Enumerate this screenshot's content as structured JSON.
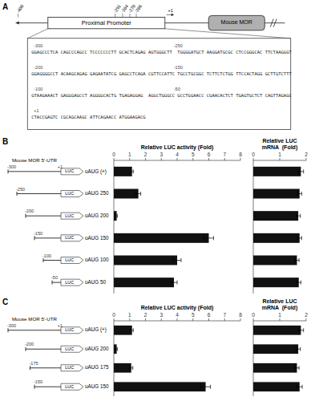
{
  "chart_data": [
    {
      "type": "diagram",
      "panel": "A",
      "annotations": [
        "Proximal Promoter",
        "Mouse MOR",
        "-400",
        "-291",
        "-264",
        "-270",
        "-286",
        "+1"
      ],
      "sequence_labels": [
        [
          "-300",
          "-250"
        ],
        [
          "-200",
          "-150"
        ],
        [
          "-100",
          "-50"
        ],
        [
          "+1"
        ]
      ],
      "sequence": [
        "GGAGCCCTCA CAGCCCAGCC TCCCCCCCTT GCACTCAGAG AGTGGGCTT  TGGGGATGCT AAGGATGCGC CTCCGGGCAC TTCTAAGGGT",
        "GGAGGGGCCT ACAAGCAGAG GAGAATATCG GAGCCTCAGA CGTTCCATTC TGCCTGCGGC TCTTCTCTGG TTCCACTAGG GCTTGTCTTT",
        "GTAAGAAACT GAGGGAGCCT AGGGGCACTG TGAGAGGAG  AGGCTGGGCC GCCTGGAACC CGAACACTCT TGAGTGCTCT CAGTTAGAGC",
        "CTACCGAGTC CGCAGCAAGC ATTCAGAACC ATGGAAGACG"
      ]
    },
    {
      "type": "bar",
      "orientation": "horizontal",
      "panel": "B",
      "title": "Relative LUC activity (Fold)",
      "subtitle": "Mouse MOR 5’-UTR",
      "categories": [
        "uAUG (+)",
        "uAUG 250",
        "uAUG 200",
        "uAUG 150",
        "uAUG 100",
        "uAUG 50"
      ],
      "starts": [
        -300,
        -250,
        -200,
        -150,
        -100,
        -50
      ],
      "annotations": [
        "+1",
        "LUC"
      ],
      "values": [
        1.15,
        1.55,
        0.18,
        6.0,
        4.0,
        3.8
      ],
      "errors": [
        0.08,
        0.15,
        0.04,
        0.3,
        0.25,
        0.2
      ],
      "color": "#111111",
      "xlim": [
        0,
        8
      ],
      "xticks": [
        0,
        1,
        2,
        3,
        4,
        5,
        6,
        7,
        8
      ]
    },
    {
      "type": "bar",
      "orientation": "horizontal",
      "title": "Relative LUC\nmRNA  (Fold)",
      "values": [
        1.8,
        1.75,
        1.7,
        1.75,
        1.65,
        1.72
      ],
      "errors": [
        0.1,
        0.08,
        0.08,
        0.08,
        0.08,
        0.08
      ],
      "color": "#111111",
      "xlim": [
        0,
        2
      ],
      "xticks": [
        0,
        1,
        2
      ]
    },
    {
      "type": "bar",
      "orientation": "horizontal",
      "panel": "C",
      "title": "Relative LUC activity (Fold)",
      "subtitle": "Mouse MOR 5’-UTR",
      "categories": [
        "uAUG (+)",
        "uAUG 200",
        "uAUG 175",
        "uAUG 150"
      ],
      "starts": [
        -300,
        -200,
        -175,
        -150
      ],
      "annotations": [
        "+1",
        "LUC"
      ],
      "values": [
        1.15,
        0.18,
        1.1,
        5.8
      ],
      "errors": [
        0.08,
        0.04,
        0.1,
        0.3
      ],
      "color": "#111111",
      "xlim": [
        0,
        8
      ],
      "xticks": [
        0,
        1,
        2,
        3,
        4,
        5,
        6,
        7,
        8
      ]
    },
    {
      "type": "bar",
      "orientation": "horizontal",
      "title": "Relative LUC\nmRNA  (Fold)",
      "values": [
        1.8,
        1.7,
        1.65,
        1.75
      ],
      "errors": [
        0.1,
        0.08,
        0.08,
        0.1
      ],
      "color": "#111111",
      "xlim": [
        0,
        2
      ],
      "xticks": [
        0,
        1,
        2
      ]
    }
  ]
}
